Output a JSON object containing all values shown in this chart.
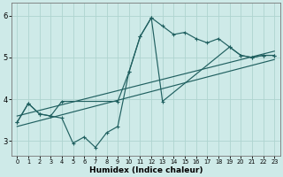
{
  "bg_color": "#ceeae8",
  "grid_color": "#aed4d0",
  "line_color": "#206060",
  "xlabel": "Humidex (Indice chaleur)",
  "xlim": [
    -0.5,
    23.5
  ],
  "ylim": [
    2.65,
    6.3
  ],
  "yticks": [
    3,
    4,
    5,
    6
  ],
  "xticks": [
    0,
    1,
    2,
    3,
    4,
    5,
    6,
    7,
    8,
    9,
    10,
    11,
    12,
    13,
    14,
    15,
    16,
    17,
    18,
    19,
    20,
    21,
    22,
    23
  ],
  "curve1_x": [
    0,
    1,
    2,
    3,
    4,
    5,
    6,
    7,
    8,
    9,
    10,
    11,
    12,
    13,
    14,
    15,
    16,
    17,
    18,
    19,
    20,
    21,
    22,
    23
  ],
  "curve1_y": [
    3.45,
    3.9,
    3.65,
    3.6,
    3.55,
    2.95,
    3.1,
    2.85,
    3.2,
    3.35,
    4.65,
    5.5,
    5.95,
    5.75,
    5.55,
    5.6,
    5.45,
    5.35,
    5.45,
    5.25,
    5.05,
    5.0,
    5.05,
    5.05
  ],
  "curve2_x": [
    0,
    1,
    2,
    3,
    4,
    9,
    10,
    11,
    12,
    13,
    19,
    20,
    21,
    22,
    23
  ],
  "curve2_y": [
    3.45,
    3.9,
    3.65,
    3.6,
    3.95,
    3.95,
    4.65,
    5.5,
    5.95,
    3.95,
    5.25,
    5.05,
    5.0,
    5.05,
    5.05
  ],
  "trend1_x": [
    0,
    23
  ],
  "trend1_y": [
    3.6,
    5.15
  ],
  "trend2_x": [
    0,
    23
  ],
  "trend2_y": [
    3.35,
    4.95
  ]
}
